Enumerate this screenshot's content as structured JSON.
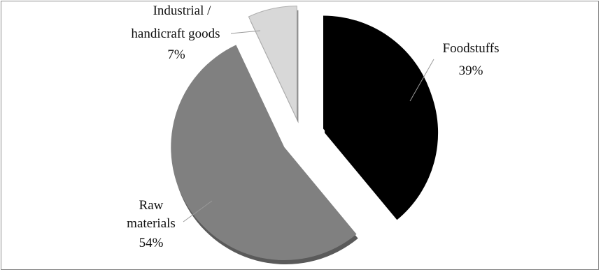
{
  "chart_data": {
    "type": "pie",
    "exploded": true,
    "three_d": true,
    "slices": [
      {
        "label_lines": [
          "Foodstuffs"
        ],
        "value": 39,
        "value_label": "39%",
        "color": "#000000",
        "shadow": "#000000"
      },
      {
        "label_lines": [
          "Raw",
          "materials"
        ],
        "value": 54,
        "value_label": "54%",
        "color": "#808080",
        "shadow": "#5a5a5a"
      },
      {
        "label_lines": [
          "Industrial /",
          "handicraft goods"
        ],
        "value": 7,
        "value_label": "7%",
        "color": "#d8d8d8",
        "shadow": "#8a8a8a"
      }
    ],
    "legend": "none",
    "grid": false
  }
}
